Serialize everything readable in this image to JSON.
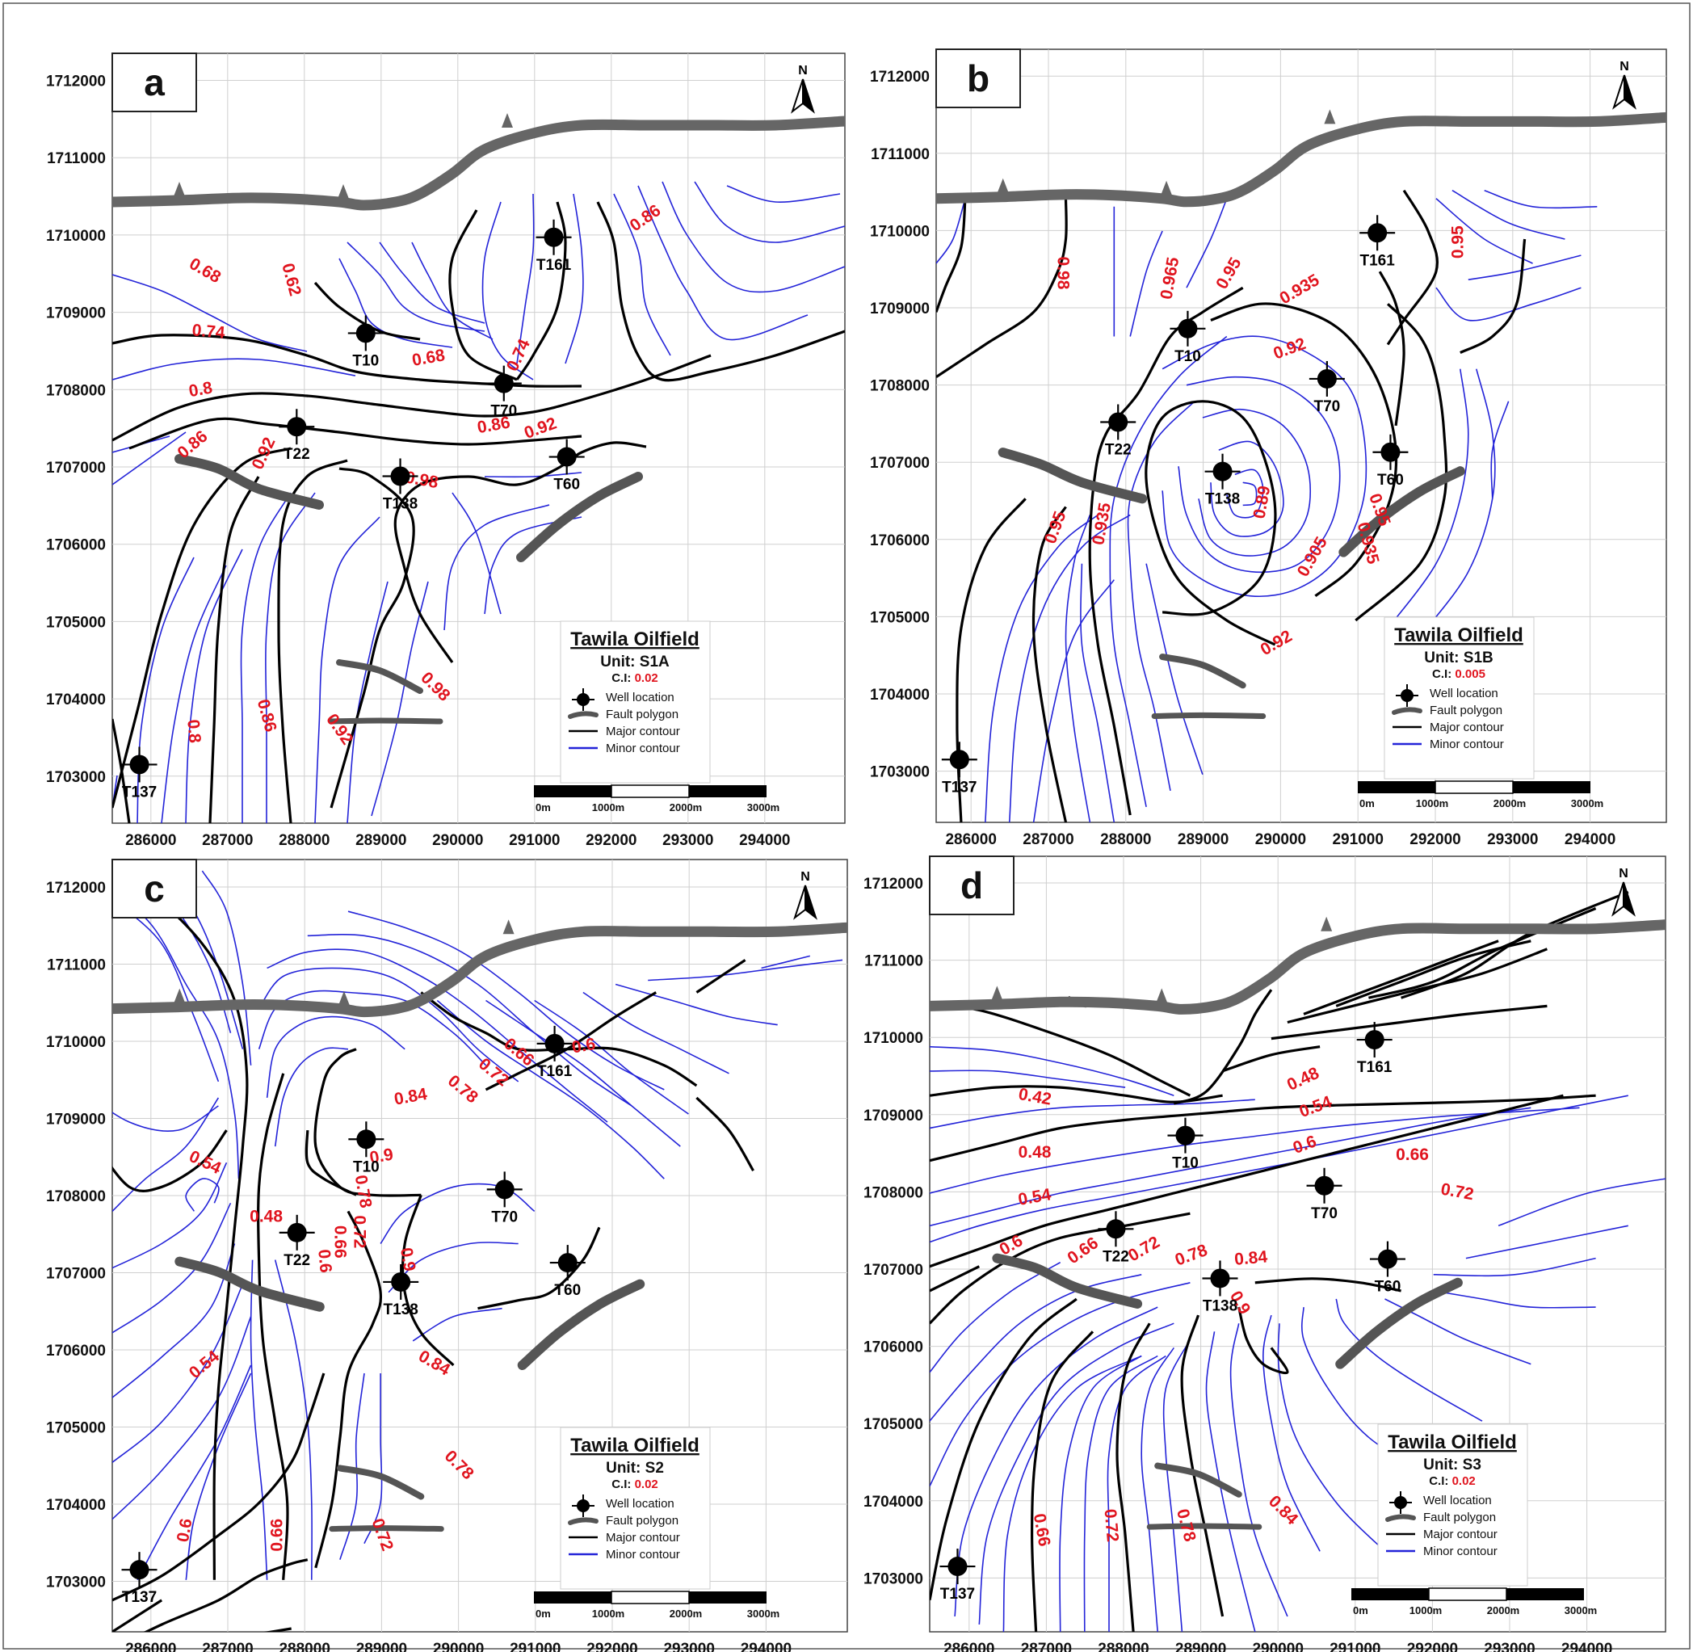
{
  "figure": {
    "x_ticks": [
      "286000",
      "287000",
      "288000",
      "289000",
      "290000",
      "291000",
      "292000",
      "293000",
      "294000"
    ],
    "y_ticks": [
      "1712000",
      "1711000",
      "1710000",
      "1709000",
      "1708000",
      "1707000",
      "1706000",
      "1705000",
      "1704000",
      "1703000"
    ],
    "north_label": "N",
    "legend_common": {
      "title": "Tawila Oilfield",
      "ci_prefix": "C.I: ",
      "items": [
        "Well location",
        "Fault polygon",
        "Major contour",
        "Minor contour"
      ]
    },
    "scale_bar": [
      "0m",
      "1000m",
      "2000m",
      "3000m"
    ],
    "colors": {
      "major_contour": "#000000",
      "minor_contour": "#2323d8",
      "contour_label": "#e0141e",
      "fault": "#666666"
    }
  },
  "panels": [
    {
      "letter": "a",
      "unit": "Unit: S1A",
      "ci": "0.02",
      "wells": [
        {
          "name": "T161",
          "x": 291250,
          "y": 1709970
        },
        {
          "name": "T10",
          "x": 288800,
          "y": 1708730
        },
        {
          "name": "T70",
          "x": 290600,
          "y": 1708080
        },
        {
          "name": "T22",
          "x": 287900,
          "y": 1707520
        },
        {
          "name": "T60",
          "x": 291420,
          "y": 1707130
        },
        {
          "name": "T138",
          "x": 289250,
          "y": 1706880
        },
        {
          "name": "T137",
          "x": 285850,
          "y": 1703150
        }
      ],
      "contour_labels": [
        {
          "text": "0.68",
          "x": 286700,
          "y": 1709530,
          "rot": 30
        },
        {
          "text": "0.62",
          "x": 287820,
          "y": 1709420,
          "rot": 75
        },
        {
          "text": "0.74",
          "x": 286750,
          "y": 1708740,
          "rot": 5
        },
        {
          "text": "0.68",
          "x": 289620,
          "y": 1708400,
          "rot": -10
        },
        {
          "text": "0.74",
          "x": 290800,
          "y": 1708440,
          "rot": -65
        },
        {
          "text": "0.8",
          "x": 286650,
          "y": 1707990,
          "rot": -10
        },
        {
          "text": "0.86",
          "x": 286550,
          "y": 1707280,
          "rot": -40
        },
        {
          "text": "0.92",
          "x": 287480,
          "y": 1707170,
          "rot": -65
        },
        {
          "text": "0.86",
          "x": 290470,
          "y": 1707530,
          "rot": -10
        },
        {
          "text": "0.92",
          "x": 291080,
          "y": 1707490,
          "rot": -20
        },
        {
          "text": "0.98",
          "x": 289530,
          "y": 1706820,
          "rot": 10
        },
        {
          "text": "0.86",
          "x": 292450,
          "y": 1710210,
          "rot": -35
        },
        {
          "text": "0.98",
          "x": 289700,
          "y": 1704150,
          "rot": 45
        },
        {
          "text": "0.8",
          "x": 286550,
          "y": 1703580,
          "rot": 85
        },
        {
          "text": "0.86",
          "x": 287500,
          "y": 1703780,
          "rot": 75
        },
        {
          "text": "0.92",
          "x": 288450,
          "y": 1703600,
          "rot": 55
        }
      ]
    },
    {
      "letter": "b",
      "unit": "Unit: S1B",
      "ci": "0.005",
      "wells": [
        {
          "name": "T161",
          "x": 291250,
          "y": 1709970
        },
        {
          "name": "T10",
          "x": 288800,
          "y": 1708730
        },
        {
          "name": "T70",
          "x": 290600,
          "y": 1708080
        },
        {
          "name": "T22",
          "x": 287900,
          "y": 1707520
        },
        {
          "name": "T60",
          "x": 291420,
          "y": 1707130
        },
        {
          "name": "T138",
          "x": 289250,
          "y": 1706880
        },
        {
          "name": "T137",
          "x": 285850,
          "y": 1703150
        }
      ],
      "contour_labels": [
        {
          "text": "0.98",
          "x": 287180,
          "y": 1709450,
          "rot": 90
        },
        {
          "text": "0.965",
          "x": 288580,
          "y": 1709380,
          "rot": -80
        },
        {
          "text": "0.95",
          "x": 289340,
          "y": 1709440,
          "rot": -60
        },
        {
          "text": "0.935",
          "x": 290250,
          "y": 1709230,
          "rot": -30
        },
        {
          "text": "0.92",
          "x": 290120,
          "y": 1708460,
          "rot": -20
        },
        {
          "text": "0.95",
          "x": 292300,
          "y": 1709850,
          "rot": -90
        },
        {
          "text": "0.95",
          "x": 287100,
          "y": 1706150,
          "rot": -70
        },
        {
          "text": "0.935",
          "x": 287700,
          "y": 1706200,
          "rot": -80
        },
        {
          "text": "0.89",
          "x": 289770,
          "y": 1706480,
          "rot": -80
        },
        {
          "text": "0.905",
          "x": 290420,
          "y": 1705770,
          "rot": -60
        },
        {
          "text": "0.92",
          "x": 289950,
          "y": 1704650,
          "rot": -30
        },
        {
          "text": "0.95",
          "x": 291270,
          "y": 1706380,
          "rot": 70
        },
        {
          "text": "0.935",
          "x": 291120,
          "y": 1705950,
          "rot": 75
        }
      ]
    },
    {
      "letter": "c",
      "unit": "Unit: S2",
      "ci": "0.02",
      "wells": [
        {
          "name": "T161",
          "x": 291250,
          "y": 1709970
        },
        {
          "name": "T10",
          "x": 288800,
          "y": 1708730
        },
        {
          "name": "T70",
          "x": 290600,
          "y": 1708080
        },
        {
          "name": "T22",
          "x": 287900,
          "y": 1707520
        },
        {
          "name": "T60",
          "x": 291420,
          "y": 1707130
        },
        {
          "name": "T138",
          "x": 289250,
          "y": 1706880
        },
        {
          "name": "T137",
          "x": 285850,
          "y": 1703150
        }
      ],
      "contour_labels": [
        {
          "text": "0.6",
          "x": 291630,
          "y": 1709930,
          "rot": -10
        },
        {
          "text": "0.66",
          "x": 290780,
          "y": 1709850,
          "rot": 40
        },
        {
          "text": "0.72",
          "x": 290450,
          "y": 1709590,
          "rot": 40
        },
        {
          "text": "0.78",
          "x": 290050,
          "y": 1709370,
          "rot": 40
        },
        {
          "text": "0.84",
          "x": 289380,
          "y": 1709270,
          "rot": -10
        },
        {
          "text": "0.9",
          "x": 289000,
          "y": 1708500,
          "rot": -10
        },
        {
          "text": "0.78",
          "x": 288750,
          "y": 1708050,
          "rot": 80
        },
        {
          "text": "0.72",
          "x": 288700,
          "y": 1707530,
          "rot": 90
        },
        {
          "text": "0.66",
          "x": 288450,
          "y": 1707400,
          "rot": 90
        },
        {
          "text": "0.6",
          "x": 288250,
          "y": 1707150,
          "rot": 85
        },
        {
          "text": "0.48",
          "x": 287500,
          "y": 1707720,
          "rot": 0
        },
        {
          "text": "0.54",
          "x": 286700,
          "y": 1708420,
          "rot": 25
        },
        {
          "text": "0.9",
          "x": 289330,
          "y": 1707170,
          "rot": 80
        },
        {
          "text": "0.84",
          "x": 289680,
          "y": 1705820,
          "rot": 30
        },
        {
          "text": "0.54",
          "x": 286700,
          "y": 1705800,
          "rot": -40
        },
        {
          "text": "0.78",
          "x": 290000,
          "y": 1704500,
          "rot": 45
        },
        {
          "text": "0.6",
          "x": 286450,
          "y": 1703660,
          "rot": -80
        },
        {
          "text": "0.66",
          "x": 287650,
          "y": 1703600,
          "rot": -90
        },
        {
          "text": "0.72",
          "x": 289000,
          "y": 1703600,
          "rot": 70
        }
      ]
    },
    {
      "letter": "d",
      "unit": "Unit: S3",
      "ci": "0.02",
      "wells": [
        {
          "name": "T161",
          "x": 291250,
          "y": 1709970
        },
        {
          "name": "T10",
          "x": 288800,
          "y": 1708730
        },
        {
          "name": "T70",
          "x": 290600,
          "y": 1708080
        },
        {
          "name": "T22",
          "x": 287900,
          "y": 1707520
        },
        {
          "name": "T60",
          "x": 291420,
          "y": 1707130
        },
        {
          "name": "T138",
          "x": 289250,
          "y": 1706880
        },
        {
          "name": "T137",
          "x": 285850,
          "y": 1703150
        }
      ],
      "contour_labels": [
        {
          "text": "0.42",
          "x": 286850,
          "y": 1709220,
          "rot": 10
        },
        {
          "text": "0.48",
          "x": 286850,
          "y": 1708500,
          "rot": 0
        },
        {
          "text": "0.54",
          "x": 286850,
          "y": 1707920,
          "rot": -10
        },
        {
          "text": "0.48",
          "x": 290330,
          "y": 1709450,
          "rot": -25
        },
        {
          "text": "0.54",
          "x": 290490,
          "y": 1709090,
          "rot": -20
        },
        {
          "text": "0.6",
          "x": 290350,
          "y": 1708600,
          "rot": -20
        },
        {
          "text": "0.66",
          "x": 291740,
          "y": 1708470,
          "rot": 0
        },
        {
          "text": "0.72",
          "x": 292320,
          "y": 1707990,
          "rot": 10
        },
        {
          "text": "0.6",
          "x": 286550,
          "y": 1707300,
          "rot": -30
        },
        {
          "text": "0.66",
          "x": 287480,
          "y": 1707230,
          "rot": -35
        },
        {
          "text": "0.72",
          "x": 288270,
          "y": 1707250,
          "rot": -30
        },
        {
          "text": "0.78",
          "x": 288880,
          "y": 1707170,
          "rot": -20
        },
        {
          "text": "0.84",
          "x": 289650,
          "y": 1707130,
          "rot": -5
        },
        {
          "text": "0.9",
          "x": 289500,
          "y": 1706560,
          "rot": 60
        },
        {
          "text": "0.84",
          "x": 290060,
          "y": 1703870,
          "rot": 45
        },
        {
          "text": "0.66",
          "x": 286930,
          "y": 1703620,
          "rot": 80
        },
        {
          "text": "0.72",
          "x": 287830,
          "y": 1703680,
          "rot": 85
        },
        {
          "text": "0.78",
          "x": 288800,
          "y": 1703680,
          "rot": 75
        }
      ]
    }
  ]
}
